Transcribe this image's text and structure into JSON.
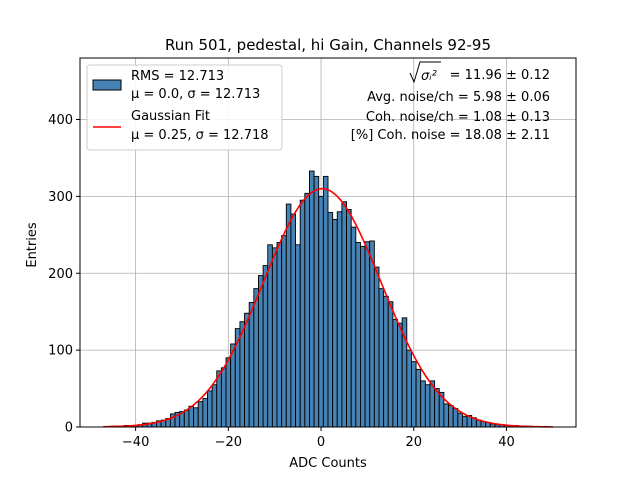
{
  "chart_data": {
    "type": "histogram",
    "title": "Run 501, pedestal, hi Gain, Channels 92-95",
    "xlabel": "ADC Counts",
    "ylabel": "Entries",
    "xlim": [
      -52,
      55
    ],
    "ylim": [
      0,
      480
    ],
    "xticks": [
      -40,
      -20,
      0,
      20,
      40
    ],
    "yticks": [
      0,
      100,
      200,
      300,
      400
    ],
    "grid": true,
    "legend_position": "top-left",
    "bar_color": "#4682b4",
    "bar_edge_color": "#000000",
    "fit_color": "#ff0000",
    "bin_width": 1,
    "bins": [
      {
        "x": -47,
        "y": 0
      },
      {
        "x": -46,
        "y": 0
      },
      {
        "x": -45,
        "y": 1
      },
      {
        "x": -44,
        "y": 1
      },
      {
        "x": -43,
        "y": 1
      },
      {
        "x": -42,
        "y": 2
      },
      {
        "x": -41,
        "y": 2
      },
      {
        "x": -40,
        "y": 2
      },
      {
        "x": -39,
        "y": 3
      },
      {
        "x": -38,
        "y": 5
      },
      {
        "x": -37,
        "y": 5
      },
      {
        "x": -36,
        "y": 6
      },
      {
        "x": -35,
        "y": 8
      },
      {
        "x": -34,
        "y": 9
      },
      {
        "x": -33,
        "y": 11
      },
      {
        "x": -32,
        "y": 17
      },
      {
        "x": -31,
        "y": 19
      },
      {
        "x": -30,
        "y": 20
      },
      {
        "x": -29,
        "y": 22
      },
      {
        "x": -28,
        "y": 27
      },
      {
        "x": -27,
        "y": 25
      },
      {
        "x": -26,
        "y": 33
      },
      {
        "x": -25,
        "y": 37
      },
      {
        "x": -24,
        "y": 47
      },
      {
        "x": -23,
        "y": 55
      },
      {
        "x": -22,
        "y": 73
      },
      {
        "x": -21,
        "y": 77
      },
      {
        "x": -20,
        "y": 90
      },
      {
        "x": -19,
        "y": 108
      },
      {
        "x": -18,
        "y": 128
      },
      {
        "x": -17,
        "y": 137
      },
      {
        "x": -16,
        "y": 148
      },
      {
        "x": -15,
        "y": 162
      },
      {
        "x": -14,
        "y": 180
      },
      {
        "x": -13,
        "y": 197
      },
      {
        "x": -12,
        "y": 210
      },
      {
        "x": -11,
        "y": 237
      },
      {
        "x": -10,
        "y": 233
      },
      {
        "x": -9,
        "y": 240
      },
      {
        "x": -8,
        "y": 249
      },
      {
        "x": -7,
        "y": 290
      },
      {
        "x": -6,
        "y": 277
      },
      {
        "x": -5,
        "y": 237
      },
      {
        "x": -4,
        "y": 295
      },
      {
        "x": -3,
        "y": 304
      },
      {
        "x": -2,
        "y": 333
      },
      {
        "x": -1,
        "y": 326
      },
      {
        "x": 0,
        "y": 300
      },
      {
        "x": 1,
        "y": 326
      },
      {
        "x": 2,
        "y": 279
      },
      {
        "x": 3,
        "y": 270
      },
      {
        "x": 4,
        "y": 280
      },
      {
        "x": 5,
        "y": 293
      },
      {
        "x": 6,
        "y": 283
      },
      {
        "x": 7,
        "y": 260
      },
      {
        "x": 8,
        "y": 240
      },
      {
        "x": 9,
        "y": 235
      },
      {
        "x": 10,
        "y": 241
      },
      {
        "x": 11,
        "y": 242
      },
      {
        "x": 12,
        "y": 208
      },
      {
        "x": 13,
        "y": 180
      },
      {
        "x": 14,
        "y": 170
      },
      {
        "x": 15,
        "y": 163
      },
      {
        "x": 16,
        "y": 140
      },
      {
        "x": 17,
        "y": 135
      },
      {
        "x": 18,
        "y": 142
      },
      {
        "x": 19,
        "y": 100
      },
      {
        "x": 20,
        "y": 85
      },
      {
        "x": 21,
        "y": 75
      },
      {
        "x": 22,
        "y": 60
      },
      {
        "x": 23,
        "y": 55
      },
      {
        "x": 24,
        "y": 60
      },
      {
        "x": 25,
        "y": 50
      },
      {
        "x": 26,
        "y": 45
      },
      {
        "x": 27,
        "y": 30
      },
      {
        "x": 28,
        "y": 28
      },
      {
        "x": 29,
        "y": 24
      },
      {
        "x": 30,
        "y": 18
      },
      {
        "x": 31,
        "y": 14
      },
      {
        "x": 32,
        "y": 15
      },
      {
        "x": 33,
        "y": 12
      },
      {
        "x": 34,
        "y": 9
      },
      {
        "x": 35,
        "y": 7
      },
      {
        "x": 36,
        "y": 6
      },
      {
        "x": 37,
        "y": 4
      },
      {
        "x": 38,
        "y": 3
      },
      {
        "x": 39,
        "y": 3
      },
      {
        "x": 40,
        "y": 2
      },
      {
        "x": 41,
        "y": 2
      },
      {
        "x": 42,
        "y": 2
      },
      {
        "x": 43,
        "y": 1
      },
      {
        "x": 44,
        "y": 1
      },
      {
        "x": 45,
        "y": 1
      },
      {
        "x": 46,
        "y": 0
      },
      {
        "x": 47,
        "y": 0
      },
      {
        "x": 48,
        "y": 0
      },
      {
        "x": 49,
        "y": 0
      }
    ],
    "fit": {
      "mu": 0.25,
      "sigma": 12.718,
      "amplitude": 310,
      "x_range": [
        -47,
        50
      ]
    },
    "legend": [
      {
        "kind": "patch",
        "line1": "RMS = 12.713",
        "line2": "μ = 0.0, σ = 12.713"
      },
      {
        "kind": "line",
        "line1": "Gaussian Fit",
        "line2": "μ = 0.25, σ = 12.718"
      }
    ],
    "annotations": [
      {
        "prefix": "",
        "sqrt_term": "σᵢ²",
        "suffix": " = 11.96 ± 0.12"
      },
      {
        "prefix": "Avg. noise/ch = 5.98 ± 0.06"
      },
      {
        "prefix": "Coh. noise/ch = 1.08 ± 0.13"
      },
      {
        "prefix": "[%] Coh. noise = 18.08 ± 2.11"
      }
    ]
  }
}
